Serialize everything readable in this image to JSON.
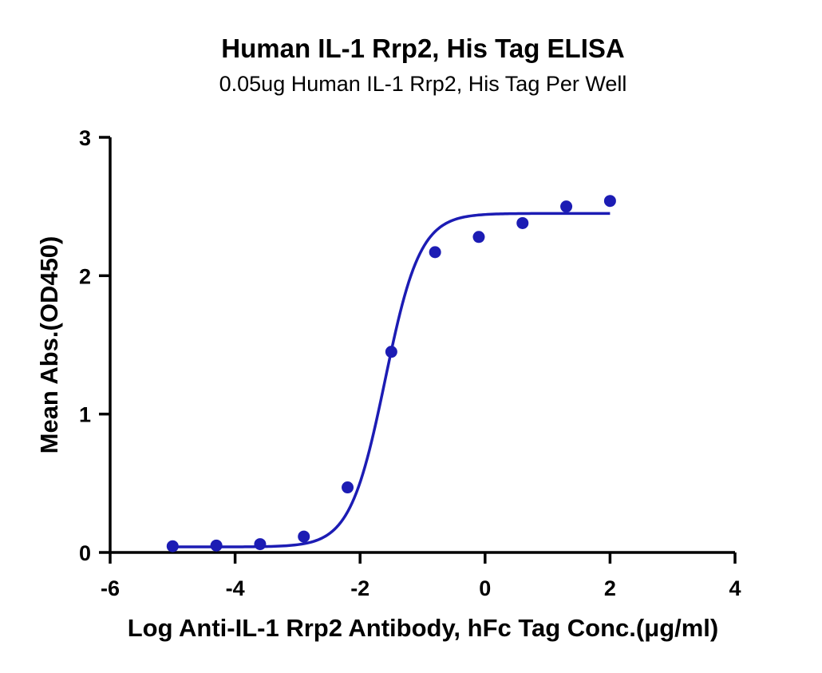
{
  "chart_data": {
    "type": "scatter",
    "title": "Human IL-1 Rrp2, His Tag ELISA",
    "subtitle": "0.05ug Human IL-1 Rrp2, His Tag Per Well",
    "xlabel": "Log Anti-IL-1 Rrp2 Antibody, hFc Tag Conc.(μg/ml)",
    "ylabel": "Mean Abs.(OD450)",
    "xlim": [
      -6,
      4
    ],
    "ylim": [
      0,
      3
    ],
    "xticks": [
      "-6",
      "-4",
      "-2",
      "0",
      "2",
      "4"
    ],
    "yticks": [
      "0",
      "1",
      "2",
      "3"
    ],
    "grid": false,
    "colors": {
      "series": "#1c1cb4",
      "axis": "#000000"
    },
    "series": [
      {
        "x": [
          -5.0,
          -4.3,
          -3.6,
          -2.9,
          -2.2,
          -1.5,
          -0.8,
          -0.1,
          0.6,
          1.3,
          2.0
        ],
        "y": [
          0.045,
          0.05,
          0.06,
          0.115,
          0.47,
          1.45,
          2.17,
          2.28,
          2.38,
          2.5,
          2.54
        ]
      }
    ],
    "fit": {
      "type": "4PL",
      "bottom": 0.04,
      "top": 2.45,
      "logEC50": -1.6,
      "hill": 1.55,
      "x_range": [
        -5.0,
        2.0
      ]
    }
  }
}
